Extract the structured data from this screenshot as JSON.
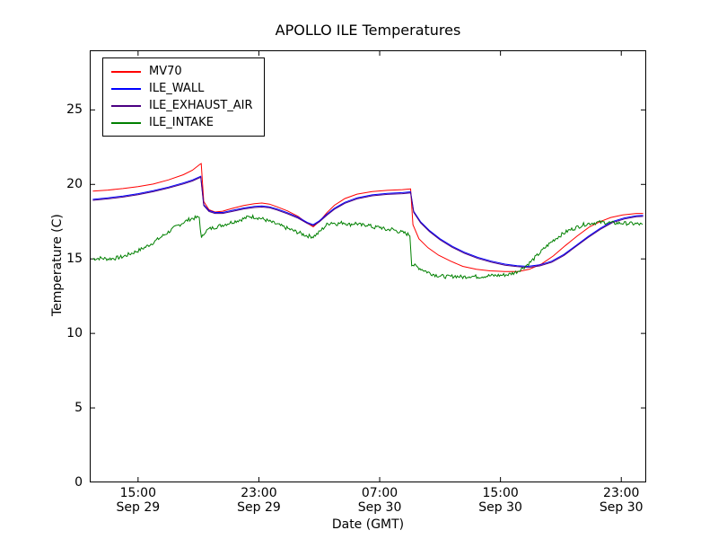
{
  "chart_data": {
    "type": "line",
    "title": "APOLLO ILE Temperatures",
    "xlabel": "Date (GMT)",
    "ylabel": "Temperature (C)",
    "x_unit": "hours since Sep 29 00:00 GMT",
    "xlim": [
      11.8,
      48.65
    ],
    "ylim": [
      0,
      29
    ],
    "grid": false,
    "legend_position": "upper left",
    "yticks": [
      0,
      5,
      10,
      15,
      20,
      25
    ],
    "xticks": [
      {
        "value": 15,
        "label": "15:00",
        "sublabel": "Sep 29"
      },
      {
        "value": 23,
        "label": "23:00",
        "sublabel": "Sep 29"
      },
      {
        "value": 31,
        "label": "07:00",
        "sublabel": "Sep 30"
      },
      {
        "value": 39,
        "label": "15:00",
        "sublabel": "Sep 30"
      },
      {
        "value": 47,
        "label": "23:00",
        "sublabel": "Sep 30"
      }
    ],
    "series": [
      {
        "name": "MV70",
        "color": "#ff0000",
        "noise": 0,
        "points": [
          [
            12,
            19.55
          ],
          [
            13,
            19.62
          ],
          [
            14,
            19.72
          ],
          [
            15,
            19.85
          ],
          [
            16,
            20.02
          ],
          [
            17,
            20.3
          ],
          [
            18,
            20.65
          ],
          [
            18.6,
            20.95
          ],
          [
            19.1,
            21.35
          ],
          [
            19.18,
            21.4
          ],
          [
            19.35,
            18.85
          ],
          [
            19.7,
            18.3
          ],
          [
            20.1,
            18.15
          ],
          [
            20.6,
            18.2
          ],
          [
            21.2,
            18.38
          ],
          [
            22,
            18.58
          ],
          [
            22.7,
            18.7
          ],
          [
            23.2,
            18.75
          ],
          [
            23.7,
            18.68
          ],
          [
            24.2,
            18.5
          ],
          [
            24.9,
            18.22
          ],
          [
            25.6,
            17.85
          ],
          [
            26.2,
            17.4
          ],
          [
            26.6,
            17.15
          ],
          [
            27,
            17.5
          ],
          [
            27.5,
            18.1
          ],
          [
            28,
            18.6
          ],
          [
            28.7,
            19.05
          ],
          [
            29.5,
            19.35
          ],
          [
            30.5,
            19.52
          ],
          [
            31.5,
            19.6
          ],
          [
            32.5,
            19.65
          ],
          [
            33.05,
            19.7
          ],
          [
            33.2,
            17.3
          ],
          [
            33.6,
            16.35
          ],
          [
            34.2,
            15.75
          ],
          [
            34.9,
            15.25
          ],
          [
            35.7,
            14.85
          ],
          [
            36.5,
            14.5
          ],
          [
            37.4,
            14.3
          ],
          [
            38.3,
            14.2
          ],
          [
            39.3,
            14.15
          ],
          [
            40.2,
            14.15
          ],
          [
            40.9,
            14.3
          ],
          [
            41.7,
            14.65
          ],
          [
            42.5,
            15.2
          ],
          [
            43.3,
            15.9
          ],
          [
            44.1,
            16.55
          ],
          [
            44.9,
            17.15
          ],
          [
            45.6,
            17.5
          ],
          [
            46.3,
            17.78
          ],
          [
            47.1,
            17.95
          ],
          [
            48,
            18.05
          ],
          [
            48.45,
            18.05
          ]
        ]
      },
      {
        "name": "ILE_WALL",
        "color": "#0000ff",
        "noise": 0,
        "points": [
          [
            12,
            19.0
          ],
          [
            13,
            19.1
          ],
          [
            14,
            19.22
          ],
          [
            15,
            19.38
          ],
          [
            16,
            19.58
          ],
          [
            17,
            19.82
          ],
          [
            18,
            20.1
          ],
          [
            18.6,
            20.3
          ],
          [
            19.15,
            20.55
          ],
          [
            19.35,
            18.65
          ],
          [
            19.7,
            18.25
          ],
          [
            20.1,
            18.12
          ],
          [
            20.6,
            18.12
          ],
          [
            21.2,
            18.25
          ],
          [
            22,
            18.42
          ],
          [
            22.7,
            18.52
          ],
          [
            23.2,
            18.55
          ],
          [
            23.7,
            18.5
          ],
          [
            24.2,
            18.35
          ],
          [
            24.9,
            18.1
          ],
          [
            25.6,
            17.8
          ],
          [
            26.2,
            17.45
          ],
          [
            26.6,
            17.3
          ],
          [
            27,
            17.55
          ],
          [
            27.5,
            18.0
          ],
          [
            28,
            18.4
          ],
          [
            28.7,
            18.8
          ],
          [
            29.5,
            19.1
          ],
          [
            30.5,
            19.3
          ],
          [
            31.5,
            19.4
          ],
          [
            32.5,
            19.45
          ],
          [
            33.05,
            19.5
          ],
          [
            33.25,
            18.2
          ],
          [
            33.7,
            17.5
          ],
          [
            34.3,
            16.9
          ],
          [
            35,
            16.35
          ],
          [
            35.8,
            15.85
          ],
          [
            36.6,
            15.45
          ],
          [
            37.5,
            15.1
          ],
          [
            38.4,
            14.85
          ],
          [
            39.3,
            14.65
          ],
          [
            40.1,
            14.55
          ],
          [
            40.8,
            14.5
          ],
          [
            41.6,
            14.6
          ],
          [
            42.4,
            14.85
          ],
          [
            43.2,
            15.3
          ],
          [
            44,
            15.9
          ],
          [
            44.8,
            16.5
          ],
          [
            45.6,
            17.05
          ],
          [
            46.4,
            17.5
          ],
          [
            47.2,
            17.75
          ],
          [
            48,
            17.9
          ],
          [
            48.45,
            17.92
          ]
        ]
      },
      {
        "name": "ILE_EXHAUST_AIR",
        "color": "#4b0082",
        "noise": 0,
        "points": [
          [
            12,
            18.93
          ],
          [
            13,
            19.03
          ],
          [
            14,
            19.15
          ],
          [
            15,
            19.31
          ],
          [
            16,
            19.51
          ],
          [
            17,
            19.75
          ],
          [
            18,
            20.03
          ],
          [
            18.6,
            20.23
          ],
          [
            19.15,
            20.48
          ],
          [
            19.35,
            18.58
          ],
          [
            19.7,
            18.18
          ],
          [
            20.1,
            18.05
          ],
          [
            20.6,
            18.05
          ],
          [
            21.2,
            18.18
          ],
          [
            22,
            18.35
          ],
          [
            22.7,
            18.45
          ],
          [
            23.2,
            18.48
          ],
          [
            23.7,
            18.43
          ],
          [
            24.2,
            18.28
          ],
          [
            24.9,
            18.03
          ],
          [
            25.6,
            17.73
          ],
          [
            26.2,
            17.38
          ],
          [
            26.6,
            17.23
          ],
          [
            27,
            17.48
          ],
          [
            27.5,
            17.93
          ],
          [
            28,
            18.33
          ],
          [
            28.7,
            18.73
          ],
          [
            29.5,
            19.03
          ],
          [
            30.5,
            19.23
          ],
          [
            31.5,
            19.33
          ],
          [
            32.5,
            19.38
          ],
          [
            33.05,
            19.43
          ],
          [
            33.25,
            18.13
          ],
          [
            33.7,
            17.43
          ],
          [
            34.3,
            16.83
          ],
          [
            35,
            16.28
          ],
          [
            35.8,
            15.78
          ],
          [
            36.6,
            15.38
          ],
          [
            37.5,
            15.03
          ],
          [
            38.4,
            14.78
          ],
          [
            39.3,
            14.58
          ],
          [
            40.1,
            14.48
          ],
          [
            40.8,
            14.43
          ],
          [
            41.6,
            14.53
          ],
          [
            42.4,
            14.78
          ],
          [
            43.2,
            15.23
          ],
          [
            44,
            15.83
          ],
          [
            44.8,
            16.43
          ],
          [
            45.6,
            16.98
          ],
          [
            46.4,
            17.43
          ],
          [
            47.2,
            17.68
          ],
          [
            48,
            17.83
          ],
          [
            48.45,
            17.85
          ]
        ]
      },
      {
        "name": "ILE_INTAKE",
        "color": "#008000",
        "noise": 0.13,
        "points": [
          [
            12,
            15.0
          ],
          [
            12.5,
            15.05
          ],
          [
            13,
            15.0
          ],
          [
            13.5,
            15.05
          ],
          [
            14,
            15.15
          ],
          [
            14.5,
            15.35
          ],
          [
            15,
            15.55
          ],
          [
            15.5,
            15.8
          ],
          [
            16,
            16.1
          ],
          [
            16.5,
            16.45
          ],
          [
            17,
            16.8
          ],
          [
            17.5,
            17.15
          ],
          [
            18,
            17.45
          ],
          [
            18.5,
            17.7
          ],
          [
            19.05,
            17.8
          ],
          [
            19.2,
            16.35
          ],
          [
            19.4,
            16.8
          ],
          [
            19.7,
            17.0
          ],
          [
            20,
            17.1
          ],
          [
            20.5,
            17.25
          ],
          [
            21,
            17.4
          ],
          [
            21.5,
            17.55
          ],
          [
            22,
            17.7
          ],
          [
            22.4,
            17.85
          ],
          [
            22.8,
            17.8
          ],
          [
            23.2,
            17.7
          ],
          [
            23.6,
            17.55
          ],
          [
            24,
            17.4
          ],
          [
            24.5,
            17.2
          ],
          [
            25,
            17.0
          ],
          [
            25.4,
            16.85
          ],
          [
            25.8,
            16.7
          ],
          [
            26.2,
            16.55
          ],
          [
            26.6,
            16.5
          ],
          [
            26.9,
            16.7
          ],
          [
            27.2,
            17.0
          ],
          [
            27.5,
            17.3
          ],
          [
            27.8,
            17.45
          ],
          [
            28.2,
            17.35
          ],
          [
            28.6,
            17.45
          ],
          [
            29,
            17.3
          ],
          [
            29.4,
            17.4
          ],
          [
            29.8,
            17.25
          ],
          [
            30.2,
            17.3
          ],
          [
            30.6,
            17.1
          ],
          [
            31,
            17.15
          ],
          [
            31.4,
            16.95
          ],
          [
            31.8,
            17.0
          ],
          [
            32.2,
            16.85
          ],
          [
            32.6,
            16.75
          ],
          [
            33,
            16.6
          ],
          [
            33.12,
            14.65
          ],
          [
            33.4,
            14.5
          ],
          [
            33.8,
            14.3
          ],
          [
            34.2,
            14.1
          ],
          [
            34.6,
            13.95
          ],
          [
            35,
            13.85
          ],
          [
            35.5,
            13.8
          ],
          [
            36,
            13.85
          ],
          [
            36.5,
            13.78
          ],
          [
            37,
            13.85
          ],
          [
            37.5,
            13.8
          ],
          [
            38,
            13.85
          ],
          [
            38.5,
            13.88
          ],
          [
            39,
            13.9
          ],
          [
            39.5,
            13.95
          ],
          [
            40,
            14.1
          ],
          [
            40.5,
            14.4
          ],
          [
            41,
            14.8
          ],
          [
            41.5,
            15.3
          ],
          [
            42,
            15.8
          ],
          [
            42.5,
            16.25
          ],
          [
            43,
            16.6
          ],
          [
            43.5,
            16.9
          ],
          [
            44,
            17.1
          ],
          [
            44.5,
            17.3
          ],
          [
            45,
            17.4
          ],
          [
            45.5,
            17.45
          ],
          [
            46,
            17.45
          ],
          [
            46.5,
            17.4
          ],
          [
            47,
            17.4
          ],
          [
            47.5,
            17.38
          ],
          [
            48,
            17.35
          ],
          [
            48.4,
            17.3
          ]
        ]
      }
    ]
  }
}
